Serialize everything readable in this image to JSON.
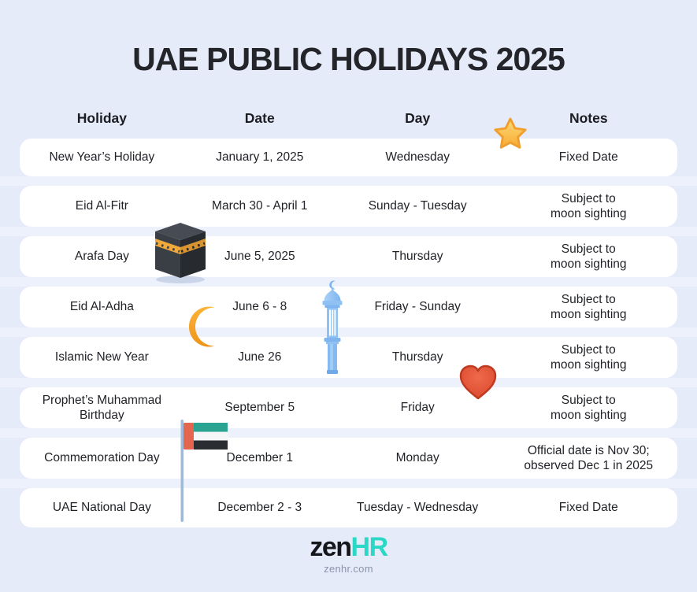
{
  "page": {
    "title": "UAE PUBLIC HOLIDAYS 2025"
  },
  "table": {
    "headers": [
      "Holiday",
      "Date",
      "Day",
      "Notes"
    ],
    "rows": [
      {
        "holiday": "New Year’s Holiday",
        "date": "January 1, 2025",
        "day": "Wednesday",
        "notes": "Fixed Date"
      },
      {
        "holiday": "Eid Al-Fitr",
        "date": "March 30 - April 1",
        "day": "Sunday - Tuesday",
        "notes": "Subject to\nmoon sighting"
      },
      {
        "holiday": "Arafa Day",
        "date": "June 5, 2025",
        "day": "Thursday",
        "notes": "Subject to\nmoon sighting"
      },
      {
        "holiday": "Eid Al-Adha",
        "date": "June 6 - 8",
        "day": "Friday - Sunday",
        "notes": "Subject to\nmoon sighting"
      },
      {
        "holiday": "Islamic New Year",
        "date": "June 26",
        "day": "Thursday",
        "notes": "Subject to\nmoon sighting"
      },
      {
        "holiday": "Prophet’s Muhammad\nBirthday",
        "date": "September 5",
        "day": "Friday",
        "notes": "Subject to\nmoon sighting"
      },
      {
        "holiday": "Commemoration Day",
        "date": "December 1",
        "day": "Monday",
        "notes": "Official date is Nov 30;\nobserved Dec 1 in 2025"
      },
      {
        "holiday": "UAE National Day",
        "date": "December 2 - 3",
        "day": "Tuesday - Wednesday",
        "notes": "Fixed Date"
      }
    ]
  },
  "icons": [
    "star-icon",
    "kaaba-icon",
    "crescent-moon-icon",
    "minaret-icon",
    "heart-icon",
    "uae-flag-icon"
  ],
  "footer": {
    "logo_zen": "zen",
    "logo_hr": "HR",
    "website": "zenhr.com"
  },
  "colors": {
    "background": "#E6EBF9",
    "gap_stripe": "#EDF1FC",
    "card": "#FFFFFF",
    "text": "#1F2127",
    "logo_dark": "#16171C",
    "logo_teal": "#2BD8C6",
    "star_orange": "#FFC94D",
    "crescent_orange": "#F5A21F",
    "heart_red": "#DE4F33",
    "minaret_blue": "#8FC2F3",
    "flag_hoist_red": "#E5664E",
    "flag_green": "#2AA392",
    "flag_black": "#2A2E33",
    "kaaba_dark": "#3A3F46",
    "kaaba_gold": "#F2A93B"
  }
}
